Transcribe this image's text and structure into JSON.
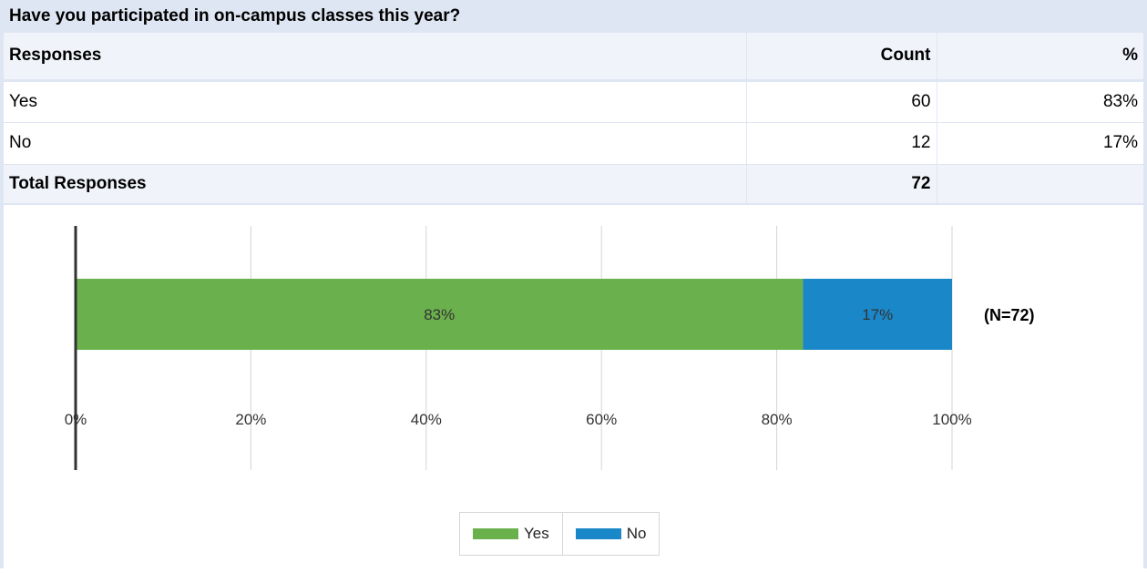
{
  "question": "Have you participated in on-campus classes this year?",
  "table": {
    "headers": {
      "responses": "Responses",
      "count": "Count",
      "percent": "%"
    },
    "rows": [
      {
        "label": "Yes",
        "count": "60",
        "percent": "83%"
      },
      {
        "label": "No",
        "count": "12",
        "percent": "17%"
      }
    ],
    "total": {
      "label": "Total Responses",
      "count": "72",
      "percent": ""
    }
  },
  "colors": {
    "yes": "#6ab04c",
    "no": "#1a87c9",
    "header_bg": "#dfe6f3",
    "grid": "#d4d4d4"
  },
  "chart_data": {
    "type": "bar",
    "orientation": "horizontal-stacked",
    "categories": [
      ""
    ],
    "series": [
      {
        "name": "Yes",
        "values": [
          83
        ],
        "label": "83%"
      },
      {
        "name": "No",
        "values": [
          17
        ],
        "label": "17%"
      }
    ],
    "xlim": [
      0,
      100
    ],
    "xticks": [
      "0%",
      "20%",
      "40%",
      "60%",
      "80%",
      "100%"
    ],
    "annotation": "(N=72)",
    "grid": true,
    "legend_position": "bottom-center"
  }
}
